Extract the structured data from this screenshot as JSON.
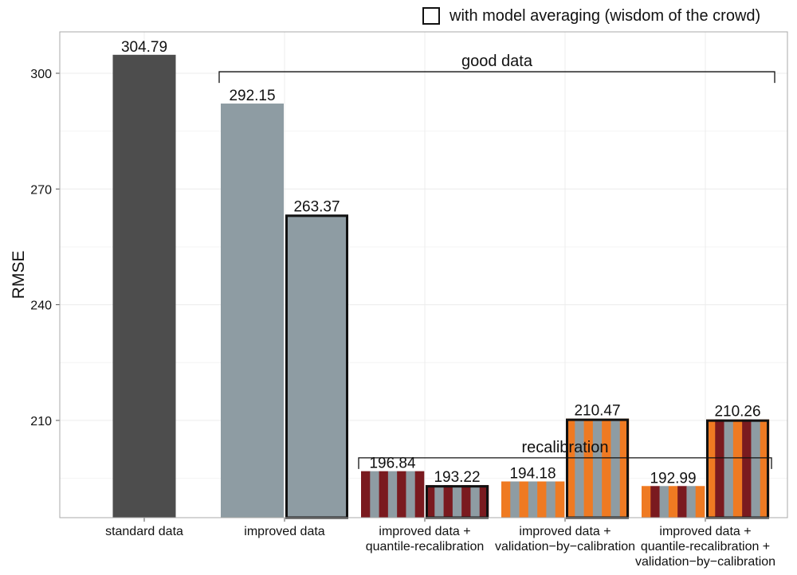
{
  "legend": {
    "label": "with model averaging  (wisdom of the crowd)"
  },
  "colors": {
    "standard": "#4d4d4d",
    "improved": "#8e9ca3",
    "dark_red": "#7a1a1f",
    "orange": "#ef7a22",
    "panel_border": "#aaaaaa",
    "grid": "#ececec"
  },
  "chart_data": {
    "type": "bar",
    "ylabel": "RMSE",
    "xlabel": "",
    "y_ticks": [
      210,
      240,
      270,
      300
    ],
    "ylim": [
      185,
      307
    ],
    "grid": true,
    "legend_position": "top-right",
    "categories": [
      [
        "standard data"
      ],
      [
        "improved data"
      ],
      [
        "improved data +",
        "quantile-recalibration"
      ],
      [
        "improved data +",
        "validation−by−calibration"
      ],
      [
        "improved data +",
        "quantile-recalibration +",
        "validation−by−calibration"
      ]
    ],
    "bars": [
      {
        "group": 0,
        "slot": 0,
        "value": 304.79,
        "label": "304.79",
        "model_averaging": false,
        "pattern": "standard"
      },
      {
        "group": 1,
        "slot": 0,
        "value": 292.15,
        "label": "292.15",
        "model_averaging": false,
        "pattern": "improved"
      },
      {
        "group": 1,
        "slot": 1,
        "value": 263.37,
        "label": "263.37",
        "model_averaging": true,
        "pattern": "improved"
      },
      {
        "group": 2,
        "slot": 0,
        "value": 196.84,
        "label": "196.84",
        "model_averaging": false,
        "pattern": "quantile"
      },
      {
        "group": 2,
        "slot": 1,
        "value": 193.22,
        "label": "193.22",
        "model_averaging": true,
        "pattern": "quantile"
      },
      {
        "group": 3,
        "slot": 0,
        "value": 194.18,
        "label": "194.18",
        "model_averaging": false,
        "pattern": "validation"
      },
      {
        "group": 3,
        "slot": 1,
        "value": 210.47,
        "label": "210.47",
        "model_averaging": true,
        "pattern": "validation"
      },
      {
        "group": 4,
        "slot": 0,
        "value": 192.99,
        "label": "192.99",
        "model_averaging": false,
        "pattern": "both"
      },
      {
        "group": 4,
        "slot": 1,
        "value": 210.26,
        "label": "210.26",
        "model_averaging": true,
        "pattern": "both"
      }
    ],
    "annotations": [
      {
        "label": "good data",
        "from_group": 1,
        "to_group": 4,
        "y_value": 300.4
      },
      {
        "label": "recalibration",
        "from_group": 2,
        "to_group": 4,
        "y_value": 200.3
      }
    ]
  }
}
